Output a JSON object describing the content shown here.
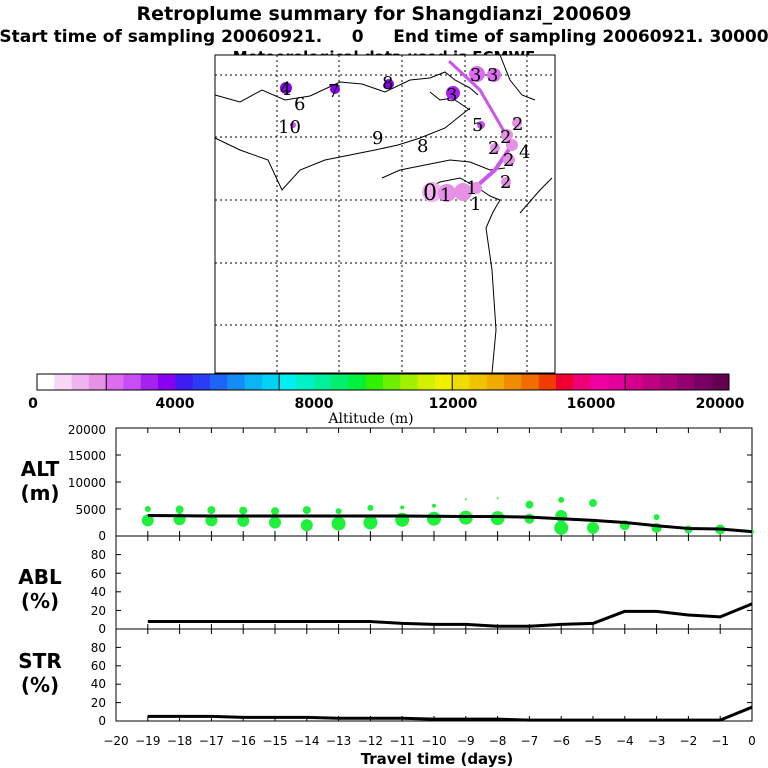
{
  "header": {
    "title": "Retroplume summary for Shangdianzi_200609",
    "line2": "Start time of sampling 20060921.     0     End time of sampling 20060921. 30000",
    "line3": "Meteorological data used is ECMWF"
  },
  "map": {
    "day_labels": [
      {
        "text": "4"
      },
      {
        "text": "6"
      },
      {
        "text": "7"
      },
      {
        "text": "8"
      },
      {
        "text": "10"
      },
      {
        "text": "9"
      },
      {
        "text": "8"
      },
      {
        "text": "3"
      },
      {
        "text": "3"
      },
      {
        "text": "3"
      },
      {
        "text": "5"
      },
      {
        "text": "2"
      },
      {
        "text": "2"
      },
      {
        "text": "2"
      },
      {
        "text": "2"
      },
      {
        "text": "4"
      },
      {
        "text": "2"
      },
      {
        "text": "0"
      },
      {
        "text": "1"
      },
      {
        "text": "1"
      },
      {
        "text": "1"
      }
    ]
  },
  "colorbar": {
    "label": "Altitude (m)",
    "ticks": [
      "0",
      "4000",
      "8000",
      "12000",
      "16000",
      "20000"
    ],
    "colors": [
      "#ffffff",
      "#f7d8f7",
      "#efb4ef",
      "#e690e6",
      "#dd6cf0",
      "#c84df5",
      "#a621f0",
      "#8a00f0",
      "#3c1ef5",
      "#2a3cf5",
      "#1e64f5",
      "#148cf5",
      "#0ab4f5",
      "#00d2f5",
      "#00f0f0",
      "#00f0c8",
      "#00f09b",
      "#00f06e",
      "#00f03c",
      "#32f000",
      "#6ef000",
      "#a0f000",
      "#d2f000",
      "#f0f000",
      "#f0dc00",
      "#f0c300",
      "#f0aa00",
      "#f08c00",
      "#f06e00",
      "#f03c00",
      "#f00032",
      "#f00078",
      "#f000a0",
      "#e6009b",
      "#d2008c",
      "#be0082",
      "#aa0078",
      "#91006e",
      "#780064",
      "#640050"
    ]
  },
  "panels": {
    "alt": {
      "label1": "ALT",
      "label2": "(m)",
      "yticks": [
        "0",
        "5000",
        "10000",
        "15000",
        "20000"
      ]
    },
    "abl": {
      "label1": "ABL",
      "label2": "(%)",
      "yticks": [
        "0",
        "20",
        "40",
        "60",
        "80"
      ]
    },
    "str": {
      "label1": "STR",
      "label2": "(%)",
      "yticks": [
        "0",
        "20",
        "40",
        "60",
        "80"
      ]
    }
  },
  "xaxis": {
    "label": "Travel time (days)",
    "ticks": [
      "−20",
      "−19",
      "−18",
      "−17",
      "−16",
      "−15",
      "−14",
      "−13",
      "−12",
      "−11",
      "−10",
      "−9",
      "−8",
      "−7",
      "−6",
      "−5",
      "−4",
      "−3",
      "−2",
      "−1",
      "0"
    ]
  },
  "chart_data": [
    {
      "type": "line",
      "name": "ALT",
      "xlabel": "Travel time (days)",
      "ylabel": "ALT (m)",
      "xlim": [
        -20,
        0
      ],
      "ylim": [
        0,
        20000
      ],
      "x": [
        -19,
        -18,
        -17,
        -16,
        -15,
        -14,
        -13,
        -12,
        -11,
        -10,
        -9,
        -8,
        -7,
        -6,
        -5,
        -4,
        -3,
        -2,
        -1,
        0
      ],
      "series": [
        {
          "name": "mean altitude",
          "values": [
            3800,
            3750,
            3700,
            3700,
            3700,
            3700,
            3700,
            3700,
            3700,
            3650,
            3600,
            3600,
            3500,
            3200,
            2900,
            2500,
            1900,
            1400,
            1300,
            800
          ]
        }
      ],
      "cluster_points": [
        {
          "x": -19,
          "y": 2900,
          "r": 6
        },
        {
          "x": -19,
          "y": 5000,
          "r": 3
        },
        {
          "x": -18,
          "y": 3100,
          "r": 6
        },
        {
          "x": -18,
          "y": 4900,
          "r": 4
        },
        {
          "x": -17,
          "y": 2900,
          "r": 6
        },
        {
          "x": -17,
          "y": 4800,
          "r": 4
        },
        {
          "x": -16,
          "y": 2800,
          "r": 6
        },
        {
          "x": -16,
          "y": 4700,
          "r": 4
        },
        {
          "x": -15,
          "y": 2500,
          "r": 6
        },
        {
          "x": -15,
          "y": 4600,
          "r": 4
        },
        {
          "x": -14,
          "y": 2000,
          "r": 6
        },
        {
          "x": -14,
          "y": 4800,
          "r": 4
        },
        {
          "x": -13,
          "y": 2300,
          "r": 7
        },
        {
          "x": -13,
          "y": 4600,
          "r": 3
        },
        {
          "x": -12,
          "y": 2500,
          "r": 7
        },
        {
          "x": -12,
          "y": 5200,
          "r": 3
        },
        {
          "x": -11,
          "y": 3000,
          "r": 7
        },
        {
          "x": -11,
          "y": 5300,
          "r": 2
        },
        {
          "x": -10,
          "y": 3200,
          "r": 7
        },
        {
          "x": -10,
          "y": 5600,
          "r": 2
        },
        {
          "x": -9,
          "y": 3400,
          "r": 7
        },
        {
          "x": -9,
          "y": 6800,
          "r": 1
        },
        {
          "x": -8,
          "y": 3300,
          "r": 7
        },
        {
          "x": -8,
          "y": 7000,
          "r": 1
        },
        {
          "x": -7,
          "y": 3200,
          "r": 5
        },
        {
          "x": -7,
          "y": 5800,
          "r": 4
        },
        {
          "x": -6,
          "y": 1500,
          "r": 7
        },
        {
          "x": -6,
          "y": 3700,
          "r": 6
        },
        {
          "x": -6,
          "y": 6700,
          "r": 3
        },
        {
          "x": -5,
          "y": 1500,
          "r": 6
        },
        {
          "x": -5,
          "y": 6100,
          "r": 4
        },
        {
          "x": -4,
          "y": 2000,
          "r": 5
        },
        {
          "x": -3,
          "y": 1500,
          "r": 5
        },
        {
          "x": -3,
          "y": 3500,
          "r": 3
        },
        {
          "x": -2,
          "y": 1200,
          "r": 4
        },
        {
          "x": -1,
          "y": 1200,
          "r": 5
        },
        {
          "x": 0,
          "y": 800,
          "r": 2
        }
      ]
    },
    {
      "type": "line",
      "name": "ABL",
      "xlabel": "Travel time (days)",
      "ylabel": "ABL (%)",
      "xlim": [
        -20,
        0
      ],
      "ylim": [
        0,
        100
      ],
      "x": [
        -19,
        -18,
        -17,
        -16,
        -15,
        -14,
        -13,
        -12,
        -11,
        -10,
        -9,
        -8,
        -7,
        -6,
        -5,
        -4,
        -3,
        -2,
        -1,
        0
      ],
      "series": [
        {
          "name": "ABL fraction",
          "values": [
            8,
            8,
            8,
            8,
            8,
            8,
            8,
            8,
            6,
            5,
            5,
            3,
            3,
            5,
            6,
            19,
            19,
            15,
            13,
            27
          ]
        }
      ]
    },
    {
      "type": "line",
      "name": "STR",
      "xlabel": "Travel time (days)",
      "ylabel": "STR (%)",
      "xlim": [
        -20,
        0
      ],
      "ylim": [
        0,
        100
      ],
      "x": [
        -19,
        -18,
        -17,
        -16,
        -15,
        -14,
        -13,
        -12,
        -11,
        -10,
        -9,
        -8,
        -7,
        -6,
        -5,
        -4,
        -3,
        -2,
        -1,
        0
      ],
      "series": [
        {
          "name": "stratospheric fraction",
          "values": [
            5,
            5,
            5,
            4,
            4,
            4,
            3,
            3,
            3,
            2,
            2,
            2,
            1,
            1,
            1,
            1,
            1,
            1,
            1,
            15
          ]
        }
      ]
    }
  ]
}
